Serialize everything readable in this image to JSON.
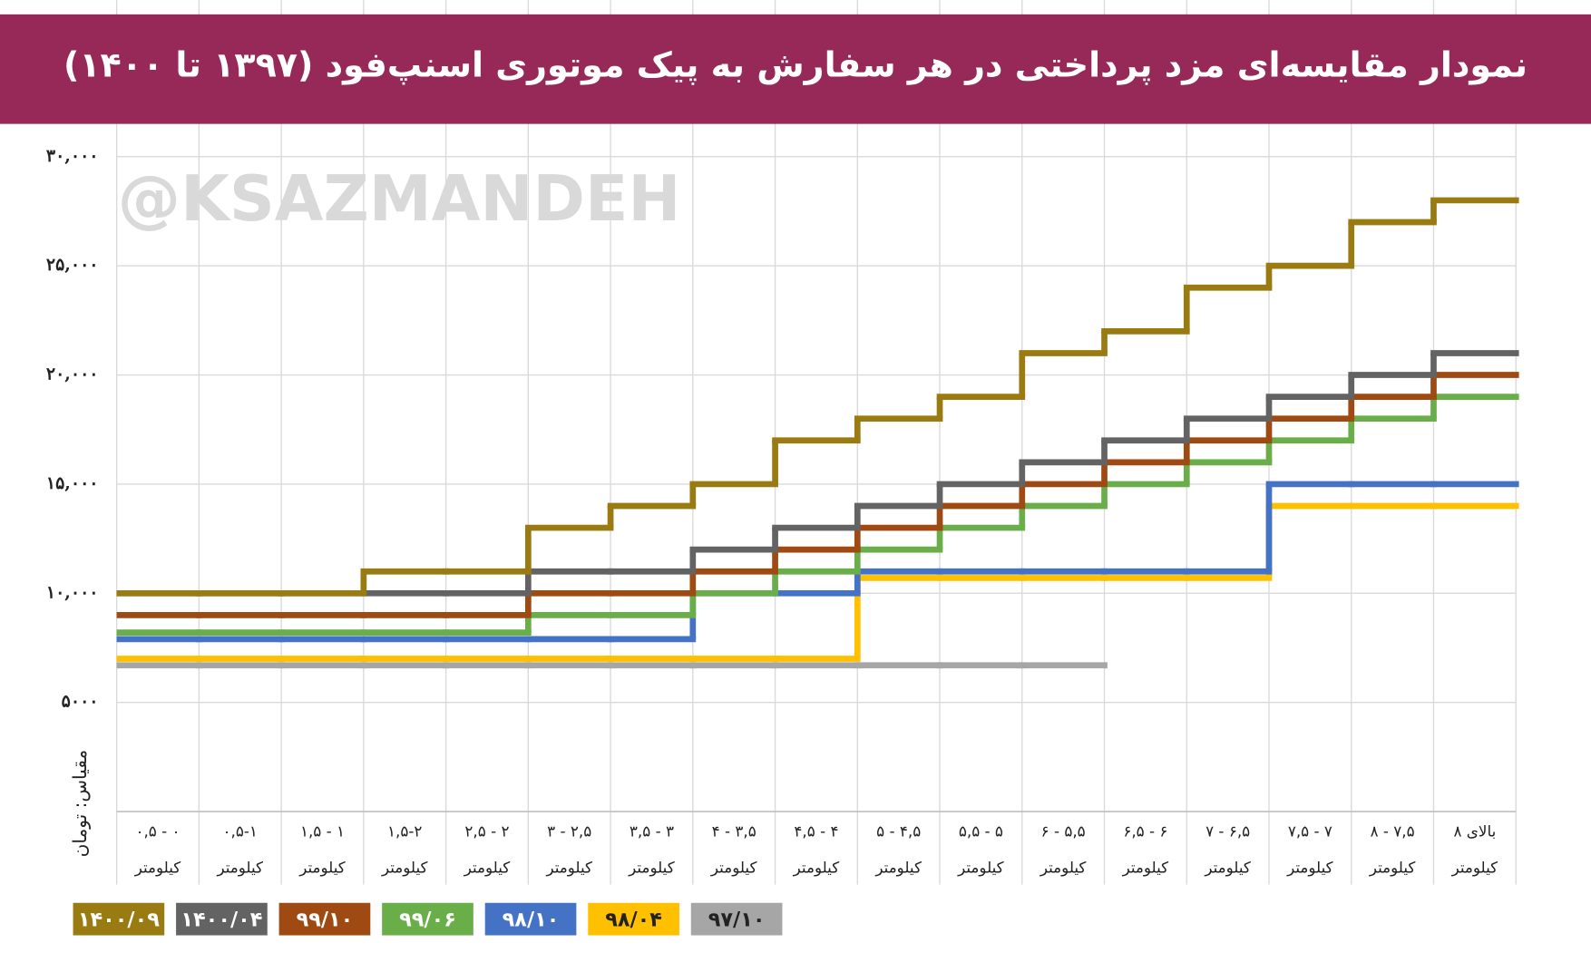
{
  "chart_data": {
    "type": "step",
    "title": "نمودار مقایسه‌ای مزد پرداختی در هر سفارش به پیک موتوری اسنپ‌فود (۱۳۹۷ تا ۱۴۰۰)",
    "watermark": "@KSAZMANDEH",
    "y_label": "مقیاس: تومان",
    "categories": [
      [
        "۰ - ۰,۵",
        "کیلومتر"
      ],
      [
        "۰,۵-۱",
        "کیلومتر"
      ],
      [
        "۱ - ۱,۵",
        "کیلومتر"
      ],
      [
        "۱,۵-۲",
        "کیلومتر"
      ],
      [
        "۲ - ۲,۵",
        "کیلومتر"
      ],
      [
        "۲,۵ - ۳",
        "کیلومتر"
      ],
      [
        "۳ - ۳,۵",
        "کیلومتر"
      ],
      [
        "۳,۵ - ۴",
        "کیلومتر"
      ],
      [
        "۴ - ۴,۵",
        "کیلومتر"
      ],
      [
        "۴,۵ - ۵",
        "کیلومتر"
      ],
      [
        "۵ - ۵,۵",
        "کیلومتر"
      ],
      [
        "۵,۵ - ۶",
        "کیلومتر"
      ],
      [
        "۶ - ۶,۵",
        "کیلومتر"
      ],
      [
        "۶,۵ - ۷",
        "کیلومتر"
      ],
      [
        "۷ - ۷,۵",
        "کیلومتر"
      ],
      [
        "۷,۵ - ۸",
        "کیلومتر"
      ],
      [
        "بالای ۸",
        "کیلومتر"
      ]
    ],
    "ylim": [
      0,
      31500
    ],
    "yticks": [
      {
        "value": 5000,
        "label": "۵۰۰۰"
      },
      {
        "value": 10000,
        "label": "۱۰,۰۰۰"
      },
      {
        "value": 15000,
        "label": "۱۵,۰۰۰"
      },
      {
        "value": 20000,
        "label": "۲۰,۰۰۰"
      },
      {
        "value": 25000,
        "label": "۲۵,۰۰۰"
      },
      {
        "value": 30000,
        "label": "۳۰,۰۰۰"
      }
    ],
    "grid": true,
    "series": [
      {
        "name": "۱۴۰۰/۰۹",
        "color": "#9a7b12",
        "values": [
          10000,
          10000,
          10000,
          11000,
          11000,
          13000,
          14000,
          15000,
          17000,
          18000,
          19000,
          21000,
          22000,
          24000,
          25000,
          27000,
          28000
        ]
      },
      {
        "name": "۱۴۰۰/۰۴",
        "color": "#636363",
        "values": [
          10000,
          10000,
          10000,
          10000,
          10000,
          11000,
          11000,
          12000,
          13000,
          14000,
          15000,
          16000,
          17000,
          18000,
          19000,
          20000,
          21000
        ]
      },
      {
        "name": "۹۹/۱۰",
        "color": "#9e4a12",
        "values": [
          9000,
          9000,
          9000,
          9000,
          9000,
          10000,
          10000,
          11000,
          12000,
          13000,
          14000,
          15000,
          16000,
          17000,
          18000,
          19000,
          20000
        ]
      },
      {
        "name": "۹۹/۰۶",
        "color": "#6aae4a",
        "values": [
          8200,
          8200,
          8200,
          8200,
          8200,
          9000,
          9000,
          10000,
          11000,
          12000,
          13000,
          14000,
          15000,
          16000,
          17000,
          18000,
          19000
        ]
      },
      {
        "name": "۹۸/۱۰",
        "color": "#4472c4",
        "values": [
          7900,
          7900,
          7900,
          7900,
          7900,
          7900,
          7900,
          10000,
          10000,
          11000,
          11000,
          11000,
          11000,
          11000,
          15000,
          15000,
          15000
        ]
      },
      {
        "name": "۹۸/۰۴",
        "color": "#ffc000",
        "values": [
          7000,
          7000,
          7000,
          7000,
          7000,
          7000,
          7000,
          7000,
          7000,
          10700,
          10700,
          10700,
          10700,
          10700,
          14000,
          14000,
          14000
        ]
      },
      {
        "name": "۹۷/۱۰",
        "color": "#a6a6a6",
        "values": [
          6700,
          6700,
          6700,
          6700,
          6700,
          6700,
          6700,
          6700,
          6700,
          6700,
          6700,
          6700,
          null,
          null,
          null,
          null,
          null
        ]
      }
    ]
  }
}
